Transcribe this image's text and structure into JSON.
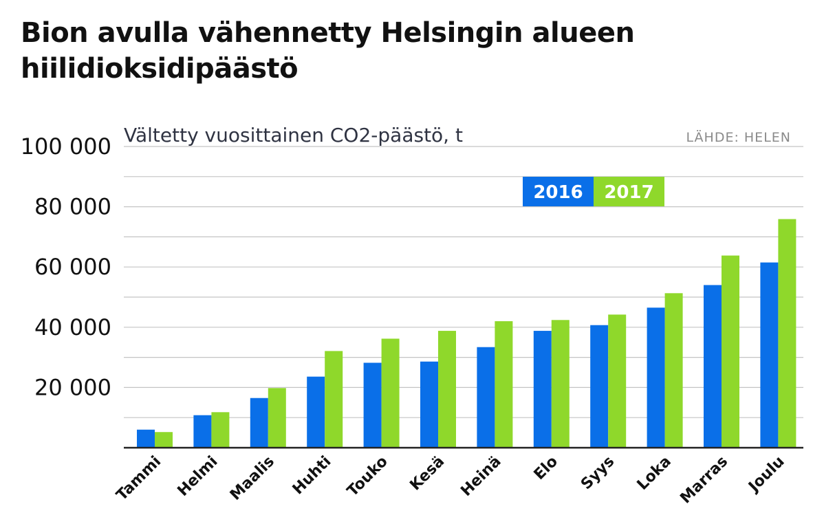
{
  "chart_data": {
    "type": "bar",
    "title": "Bion avulla vähennetty Helsingin alueen hiilidioksidipäästö",
    "subtitle": "Vältetty vuosittainen CO2-päästö, t",
    "source": "LÄHDE: HELEN",
    "xlabel": "",
    "ylabel": "Vältetty vuosittainen CO2-päästö, t",
    "ylim": [
      0,
      100000
    ],
    "y_ticks": [
      20000,
      40000,
      60000,
      80000,
      100000
    ],
    "y_tick_labels": [
      "20 000",
      "40 000",
      "60 000",
      "80 000",
      "100 000"
    ],
    "grid_step": 10000,
    "grid": true,
    "legend_position": "top-right",
    "categories": [
      "Tammi",
      "Helmi",
      "Maalis",
      "Huhti",
      "Touko",
      "Kesä",
      "Heinä",
      "Elo",
      "Syys",
      "Loka",
      "Marras",
      "Joulu"
    ],
    "series": [
      {
        "name": "2016",
        "color": "#0a6fe8",
        "values": [
          6000,
          10800,
          16500,
          23600,
          28200,
          28600,
          33400,
          38800,
          40700,
          46500,
          54000,
          61500
        ]
      },
      {
        "name": "2017",
        "color": "#8fd82b",
        "values": [
          5200,
          11800,
          19800,
          32100,
          36200,
          38800,
          42000,
          42400,
          44200,
          51300,
          63800,
          75900
        ]
      }
    ]
  }
}
